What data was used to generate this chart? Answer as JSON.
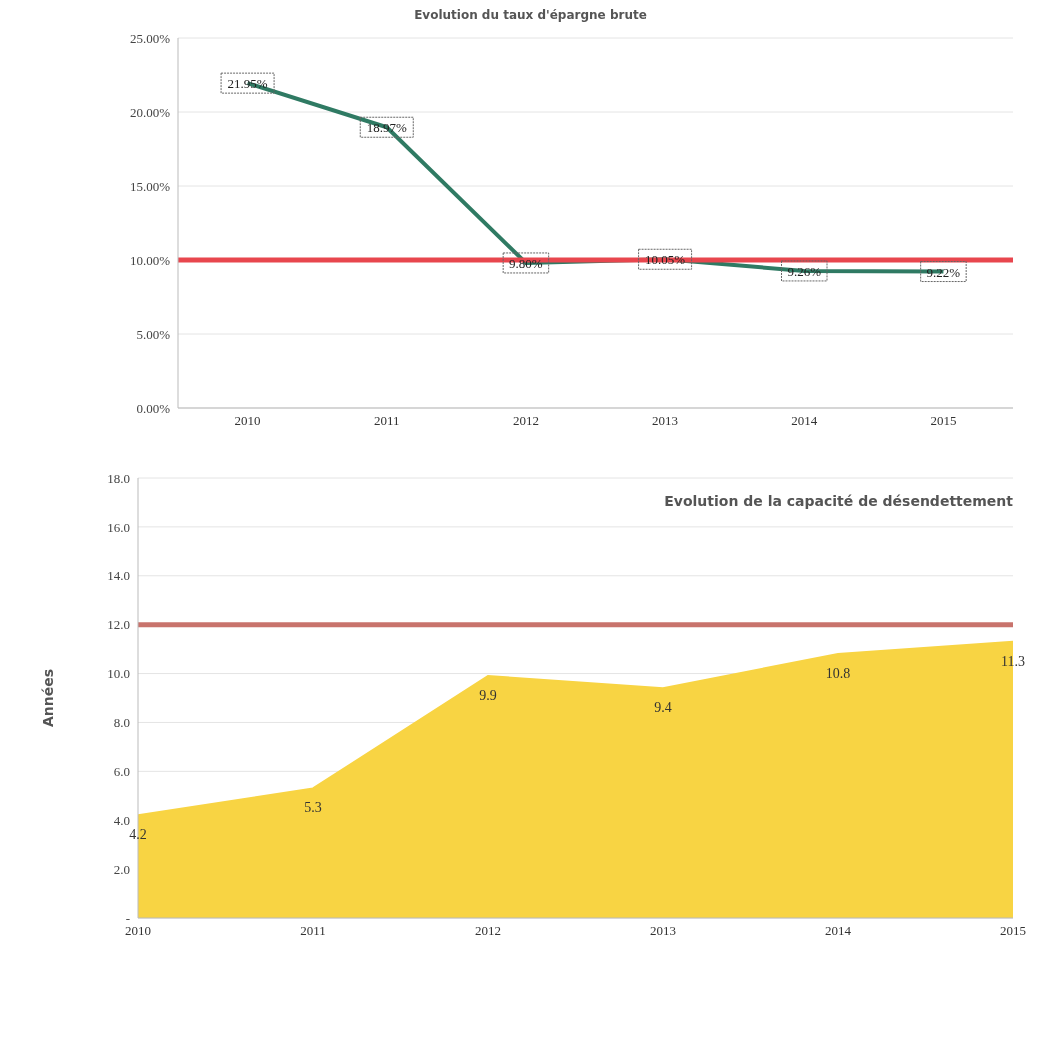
{
  "chart_data": [
    {
      "type": "line",
      "title": "Evolution du taux d'épargne brute",
      "categories": [
        "2010",
        "2011",
        "2012",
        "2013",
        "2014",
        "2015"
      ],
      "series": [
        {
          "color": "#2f7a63",
          "values": [
            21.95,
            18.97,
            9.8,
            10.05,
            9.26,
            9.22
          ],
          "value_labels": [
            "21.95%",
            "18.97%",
            "9.80%",
            "10.05%",
            "9.26%",
            "9.22%"
          ]
        }
      ],
      "ylim": [
        0,
        25
      ],
      "yticks": [
        {
          "value": 0,
          "label": "0.00%"
        },
        {
          "value": 5,
          "label": "5.00%"
        },
        {
          "value": 10,
          "label": "10.00%"
        },
        {
          "value": 15,
          "label": "15.00%"
        },
        {
          "value": 20,
          "label": "20.00%"
        },
        {
          "value": 25,
          "label": "25.00%"
        }
      ],
      "ref_lines": [
        {
          "axis": "y",
          "value": 10,
          "color": "#e8464e"
        }
      ],
      "grid": "y",
      "legend": false,
      "line_style": "solid"
    },
    {
      "type": "area",
      "title": "Evolution de la capacité de désendettement",
      "ylabel": "Années",
      "categories": [
        "2010",
        "2011",
        "2012",
        "2013",
        "2014",
        "2015"
      ],
      "series": [
        {
          "color": "#f8d443",
          "values": [
            4.2,
            5.3,
            9.9,
            9.4,
            10.8,
            11.3
          ]
        }
      ],
      "ylim": [
        0,
        18
      ],
      "yticks": [
        {
          "value": 0,
          "label": "-"
        },
        {
          "value": 2,
          "label": "2.0"
        },
        {
          "value": 4,
          "label": "4.0"
        },
        {
          "value": 6,
          "label": "6.0"
        },
        {
          "value": 8,
          "label": "8.0"
        },
        {
          "value": 10,
          "label": "10.0"
        },
        {
          "value": 12,
          "label": "12.0"
        },
        {
          "value": 14,
          "label": "14.0"
        },
        {
          "value": 16,
          "label": "16.0"
        },
        {
          "value": 18,
          "label": "18.0"
        }
      ],
      "ref_lines": [
        {
          "axis": "y",
          "value": 12,
          "color": "#c8736c"
        }
      ],
      "data_labels": true,
      "grid": "y",
      "legend": false
    }
  ]
}
